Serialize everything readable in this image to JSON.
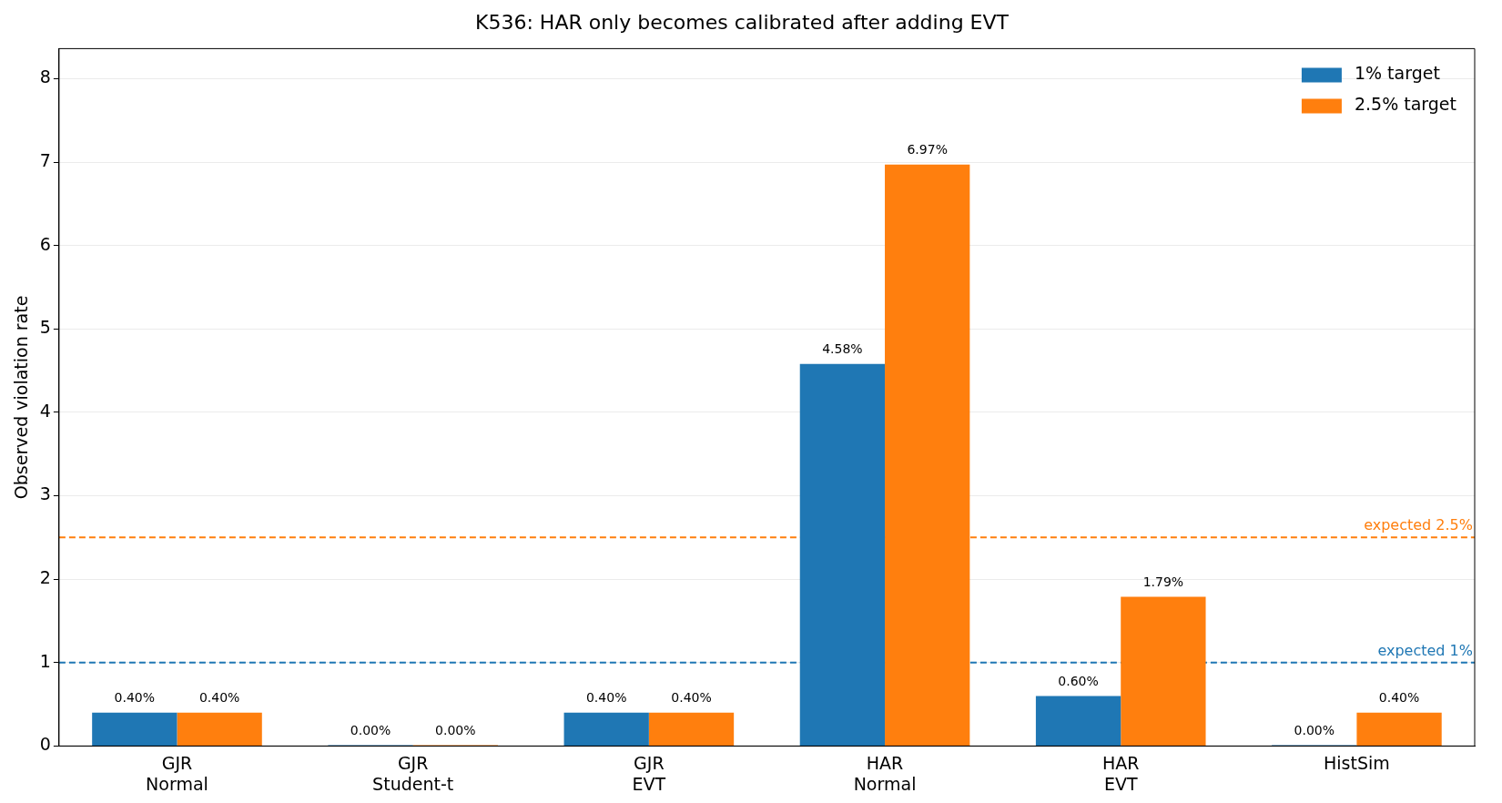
{
  "chart_data": {
    "type": "bar",
    "title": "K536: HAR only becomes calibrated after adding EVT",
    "ylabel": "Observed violation rate",
    "categories": [
      "GJR\nNormal",
      "GJR\nStudent-t",
      "GJR\nEVT",
      "HAR\nNormal",
      "HAR\nEVT",
      "HistSim"
    ],
    "series": [
      {
        "name": "1% target",
        "color": "#1f77b4",
        "values": [
          0.4,
          0.0,
          0.4,
          4.58,
          0.6,
          0.0
        ],
        "value_labels": [
          "0.40%",
          "0.00%",
          "0.40%",
          "4.58%",
          "0.60%",
          "0.00%"
        ]
      },
      {
        "name": "2.5% target",
        "color": "#ff7f0e",
        "values": [
          0.4,
          0.0,
          0.4,
          6.97,
          1.79,
          0.4
        ],
        "value_labels": [
          "0.40%",
          "0.00%",
          "0.40%",
          "6.97%",
          "1.79%",
          "0.40%"
        ]
      }
    ],
    "ylim": [
      0,
      8.36
    ],
    "yticks": [
      0,
      1,
      2,
      3,
      4,
      5,
      6,
      7,
      8
    ],
    "grid": "y",
    "legend": "top right",
    "ref_lines": [
      {
        "axis": "y",
        "value": 1,
        "label": "expected 1%",
        "color": "#1f77b4",
        "line_style": "dashed"
      },
      {
        "axis": "y",
        "value": 2.5,
        "label": "expected 2.5%",
        "color": "#ff7f0e",
        "line_style": "dashed"
      }
    ]
  }
}
